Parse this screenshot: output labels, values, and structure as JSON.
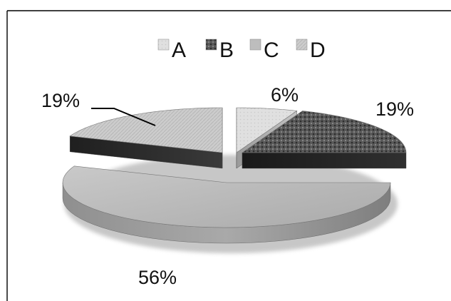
{
  "chart_data": {
    "type": "pie",
    "style": "3d-exploded",
    "categories": [
      "A",
      "B",
      "C",
      "D"
    ],
    "values": [
      6,
      19,
      56,
      19
    ],
    "data_labels": [
      "6%",
      "19%",
      "56%",
      "19%"
    ],
    "legend_position": "top",
    "colors": {
      "A": "#d6d6d6",
      "B": "#3a3a3a",
      "C": "#b9b9b9",
      "D": "#c8c8c8"
    }
  }
}
